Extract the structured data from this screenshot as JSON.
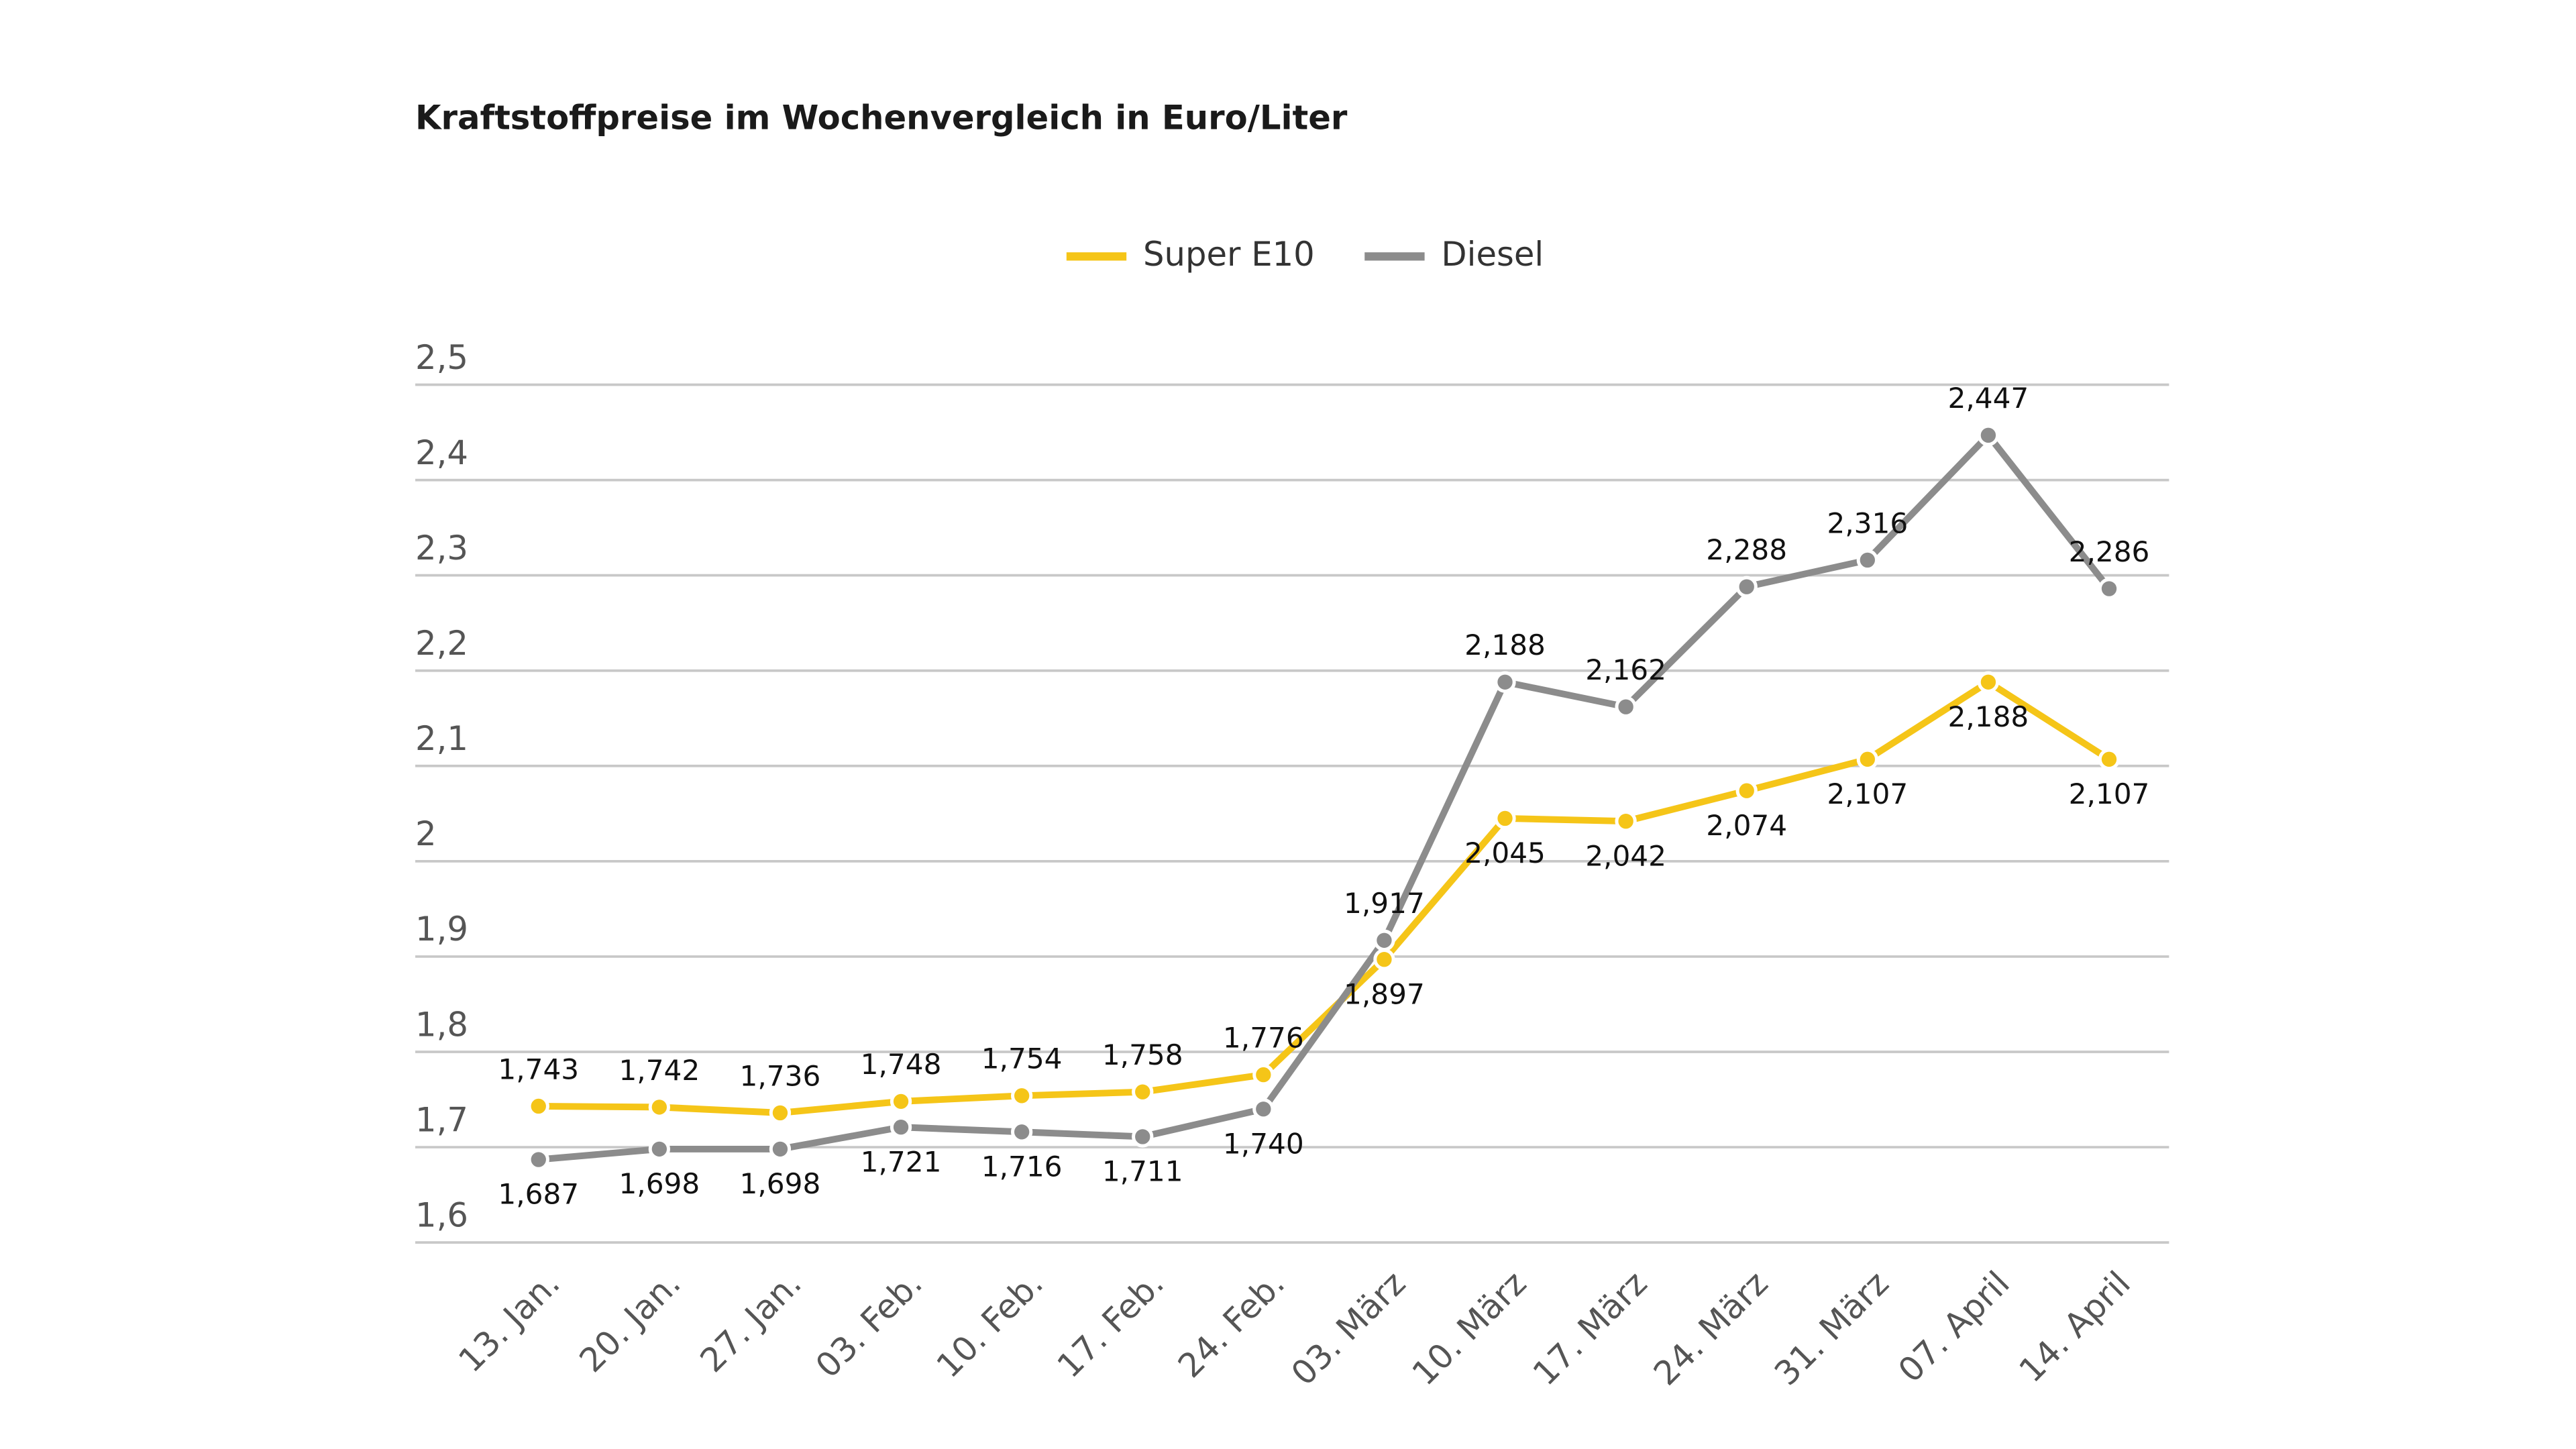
{
  "chart_data": {
    "type": "line",
    "title": "Kraftstoffpreise im Wochenvergleich in Euro/Liter",
    "categories": [
      "13. Jan.",
      "20. Jan.",
      "27. Jan.",
      "03. Feb.",
      "10. Feb.",
      "17. Feb.",
      "24. Feb.",
      "03. März",
      "10. März",
      "17. März",
      "24. März",
      "31. März",
      "07. April",
      "14. April"
    ],
    "series": [
      {
        "name": "Super E10",
        "color": "#f5c518",
        "values": [
          1.743,
          1.742,
          1.736,
          1.748,
          1.754,
          1.758,
          1.776,
          1.897,
          2.045,
          2.042,
          2.074,
          2.107,
          2.188,
          2.107
        ],
        "value_labels": [
          "1,743",
          "1,742",
          "1,736",
          "1,748",
          "1,754",
          "1,758",
          "1,776",
          "1,897",
          "2,045",
          "2,042",
          "2,074",
          "2,107",
          "2,188",
          "2,107"
        ]
      },
      {
        "name": "Diesel",
        "color": "#8c8c8c",
        "values": [
          1.687,
          1.698,
          1.698,
          1.721,
          1.716,
          1.711,
          1.74,
          1.917,
          2.188,
          2.162,
          2.288,
          2.316,
          2.447,
          2.286
        ],
        "value_labels": [
          "1,687",
          "1,698",
          "1,698",
          "1,721",
          "1,716",
          "1,711",
          "1,740",
          "1,917",
          "2,188",
          "2,162",
          "2,288",
          "2,316",
          "2,447",
          "2,286"
        ]
      }
    ],
    "ylim": [
      1.6,
      2.5
    ],
    "yticks": [
      {
        "value": 1.6,
        "label": "1,6"
      },
      {
        "value": 1.7,
        "label": "1,7"
      },
      {
        "value": 1.8,
        "label": "1,8"
      },
      {
        "value": 1.9,
        "label": "1,9"
      },
      2,
      {
        "value": 2.1,
        "label": "2,1"
      },
      {
        "value": 2.2,
        "label": "2,2"
      },
      {
        "value": 2.3,
        "label": "2,3"
      },
      {
        "value": 2.4,
        "label": "2,4"
      },
      {
        "value": 2.5,
        "label": "2,5"
      }
    ],
    "grid": true,
    "legend": "top"
  }
}
